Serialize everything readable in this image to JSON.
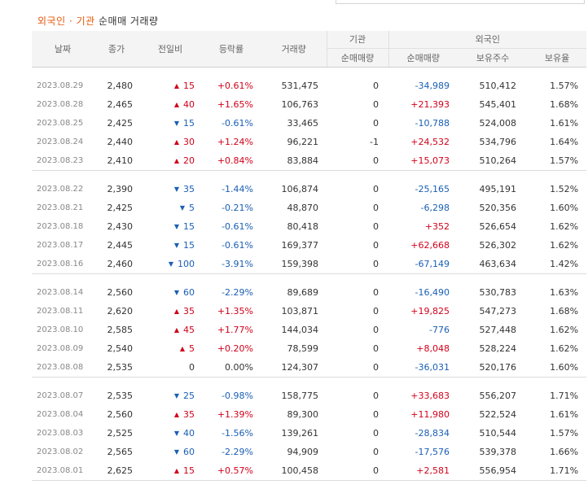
{
  "caption": {
    "part1": "외국인",
    "dot": " · ",
    "part2": "기관",
    "part3": " 순매매 거래량"
  },
  "headers": {
    "date": "날짜",
    "close": "종가",
    "change": "전일비",
    "rate": "등락률",
    "volume": "거래량",
    "institution": "기관",
    "inst_net": "순매매량",
    "foreign": "외국인",
    "frn_net": "순매매량",
    "holdings": "보유주수",
    "ratio": "보유율"
  },
  "groups": [
    [
      {
        "date": "2023.08.29",
        "close": "2,480",
        "dir": "up",
        "change": "15",
        "rate": "+0.61%",
        "volume": "531,475",
        "inst": "0",
        "frn": "-34,989",
        "frn_dir": "down",
        "hold": "510,412",
        "ratio": "1.57%"
      },
      {
        "date": "2023.08.28",
        "close": "2,465",
        "dir": "up",
        "change": "40",
        "rate": "+1.65%",
        "volume": "106,763",
        "inst": "0",
        "frn": "+21,393",
        "frn_dir": "up",
        "hold": "545,401",
        "ratio": "1.68%"
      },
      {
        "date": "2023.08.25",
        "close": "2,425",
        "dir": "down",
        "change": "15",
        "rate": "-0.61%",
        "volume": "33,465",
        "inst": "0",
        "frn": "-10,788",
        "frn_dir": "down",
        "hold": "524,008",
        "ratio": "1.61%"
      },
      {
        "date": "2023.08.24",
        "close": "2,440",
        "dir": "up",
        "change": "30",
        "rate": "+1.24%",
        "volume": "96,221",
        "inst": "-1",
        "frn": "+24,532",
        "frn_dir": "up",
        "hold": "534,796",
        "ratio": "1.64%"
      },
      {
        "date": "2023.08.23",
        "close": "2,410",
        "dir": "up",
        "change": "20",
        "rate": "+0.84%",
        "volume": "83,884",
        "inst": "0",
        "frn": "+15,073",
        "frn_dir": "up",
        "hold": "510,264",
        "ratio": "1.57%"
      }
    ],
    [
      {
        "date": "2023.08.22",
        "close": "2,390",
        "dir": "down",
        "change": "35",
        "rate": "-1.44%",
        "volume": "106,874",
        "inst": "0",
        "frn": "-25,165",
        "frn_dir": "down",
        "hold": "495,191",
        "ratio": "1.52%"
      },
      {
        "date": "2023.08.21",
        "close": "2,425",
        "dir": "down",
        "change": "5",
        "rate": "-0.21%",
        "volume": "48,870",
        "inst": "0",
        "frn": "-6,298",
        "frn_dir": "down",
        "hold": "520,356",
        "ratio": "1.60%"
      },
      {
        "date": "2023.08.18",
        "close": "2,430",
        "dir": "down",
        "change": "15",
        "rate": "-0.61%",
        "volume": "80,418",
        "inst": "0",
        "frn": "+352",
        "frn_dir": "up",
        "hold": "526,654",
        "ratio": "1.62%"
      },
      {
        "date": "2023.08.17",
        "close": "2,445",
        "dir": "down",
        "change": "15",
        "rate": "-0.61%",
        "volume": "169,377",
        "inst": "0",
        "frn": "+62,668",
        "frn_dir": "up",
        "hold": "526,302",
        "ratio": "1.62%"
      },
      {
        "date": "2023.08.16",
        "close": "2,460",
        "dir": "down",
        "change": "100",
        "rate": "-3.91%",
        "volume": "159,398",
        "inst": "0",
        "frn": "-67,149",
        "frn_dir": "down",
        "hold": "463,634",
        "ratio": "1.42%"
      }
    ],
    [
      {
        "date": "2023.08.14",
        "close": "2,560",
        "dir": "down",
        "change": "60",
        "rate": "-2.29%",
        "volume": "89,689",
        "inst": "0",
        "frn": "-16,490",
        "frn_dir": "down",
        "hold": "530,783",
        "ratio": "1.63%"
      },
      {
        "date": "2023.08.11",
        "close": "2,620",
        "dir": "up",
        "change": "35",
        "rate": "+1.35%",
        "volume": "103,871",
        "inst": "0",
        "frn": "+19,825",
        "frn_dir": "up",
        "hold": "547,273",
        "ratio": "1.68%"
      },
      {
        "date": "2023.08.10",
        "close": "2,585",
        "dir": "up",
        "change": "45",
        "rate": "+1.77%",
        "volume": "144,034",
        "inst": "0",
        "frn": "-776",
        "frn_dir": "down",
        "hold": "527,448",
        "ratio": "1.62%"
      },
      {
        "date": "2023.08.09",
        "close": "2,540",
        "dir": "up",
        "change": "5",
        "rate": "+0.20%",
        "volume": "78,599",
        "inst": "0",
        "frn": "+8,048",
        "frn_dir": "up",
        "hold": "528,224",
        "ratio": "1.62%"
      },
      {
        "date": "2023.08.08",
        "close": "2,535",
        "dir": "flat",
        "change": "0",
        "rate": "0.00%",
        "volume": "124,307",
        "inst": "0",
        "frn": "-36,031",
        "frn_dir": "down",
        "hold": "520,176",
        "ratio": "1.60%"
      }
    ],
    [
      {
        "date": "2023.08.07",
        "close": "2,535",
        "dir": "down",
        "change": "25",
        "rate": "-0.98%",
        "volume": "158,775",
        "inst": "0",
        "frn": "+33,683",
        "frn_dir": "up",
        "hold": "556,207",
        "ratio": "1.71%"
      },
      {
        "date": "2023.08.04",
        "close": "2,560",
        "dir": "up",
        "change": "35",
        "rate": "+1.39%",
        "volume": "89,300",
        "inst": "0",
        "frn": "+11,980",
        "frn_dir": "up",
        "hold": "522,524",
        "ratio": "1.61%"
      },
      {
        "date": "2023.08.03",
        "close": "2,525",
        "dir": "down",
        "change": "40",
        "rate": "-1.56%",
        "volume": "139,261",
        "inst": "0",
        "frn": "-28,834",
        "frn_dir": "down",
        "hold": "510,544",
        "ratio": "1.57%"
      },
      {
        "date": "2023.08.02",
        "close": "2,565",
        "dir": "down",
        "change": "60",
        "rate": "-2.29%",
        "volume": "94,909",
        "inst": "0",
        "frn": "-17,576",
        "frn_dir": "down",
        "hold": "539,378",
        "ratio": "1.66%"
      },
      {
        "date": "2023.08.01",
        "close": "2,625",
        "dir": "up",
        "change": "15",
        "rate": "+0.57%",
        "volume": "100,458",
        "inst": "0",
        "frn": "+2,581",
        "frn_dir": "up",
        "hold": "556,954",
        "ratio": "1.71%"
      }
    ]
  ],
  "colors": {
    "up": "#d0021b",
    "down": "#1a5fb4",
    "caption_accent": "#e8590c"
  },
  "icons": {
    "up": "up-triangle-icon",
    "down": "down-triangle-icon"
  }
}
